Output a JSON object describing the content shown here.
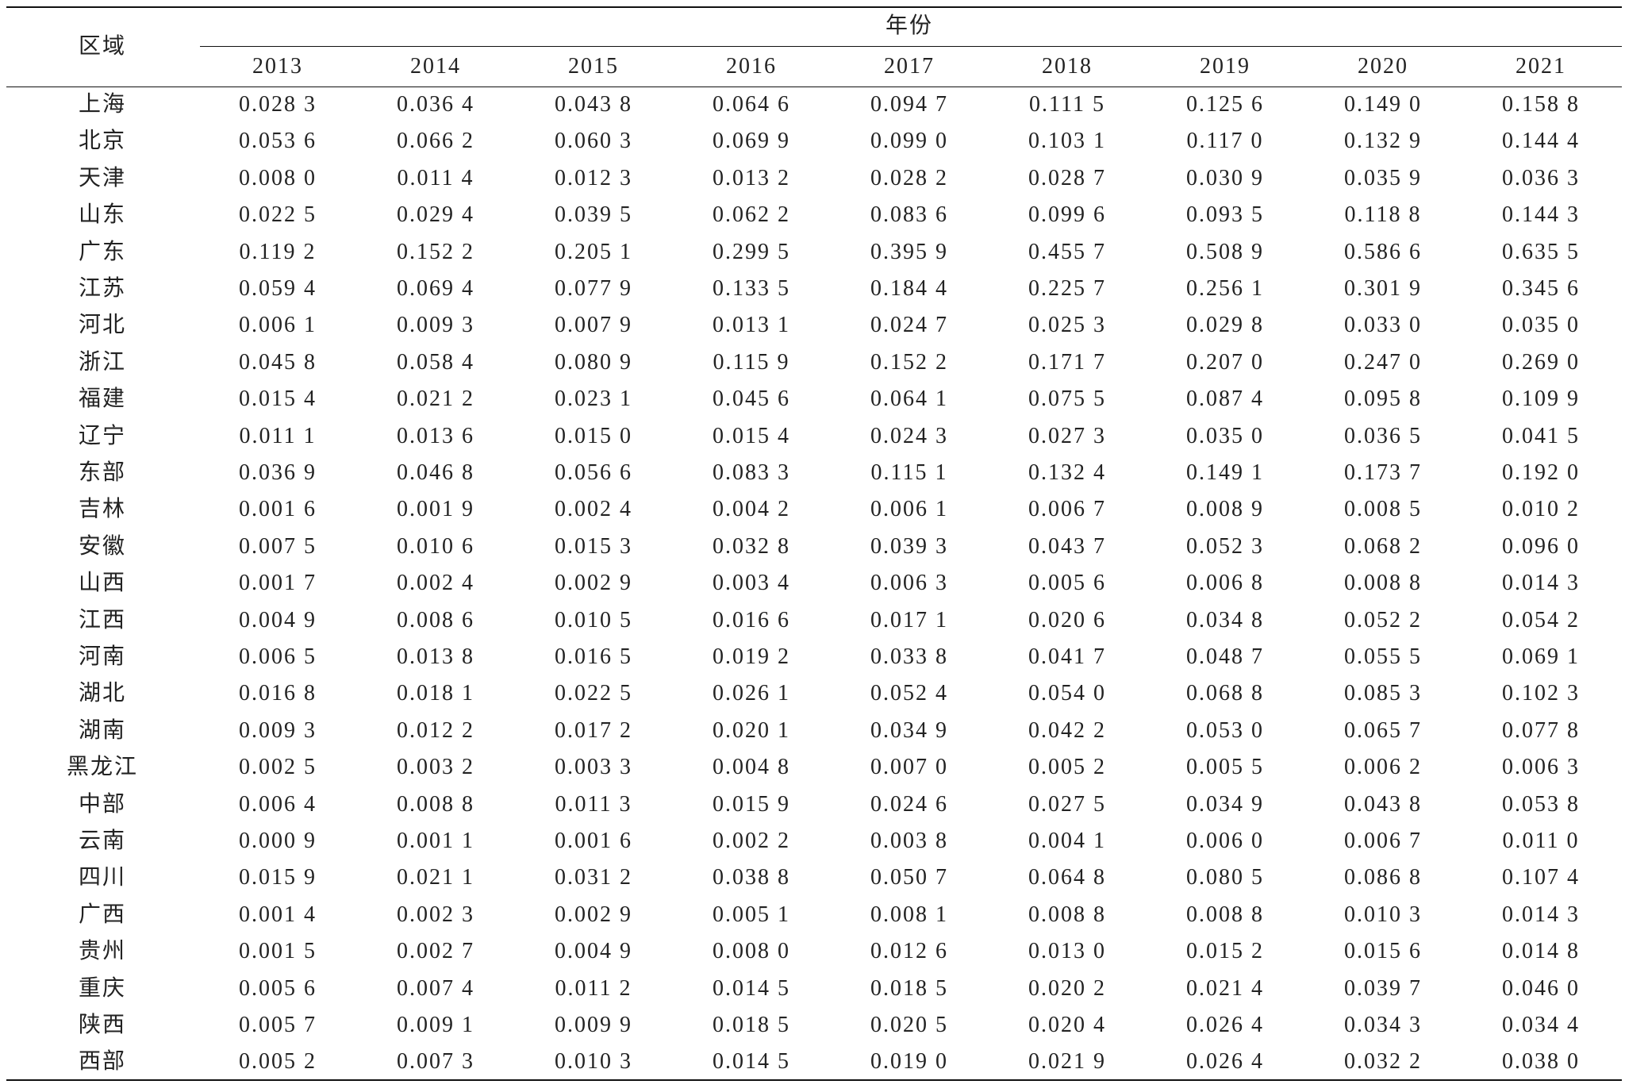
{
  "table": {
    "header": {
      "region": "区域",
      "group": "年份",
      "years": [
        "2013",
        "2014",
        "2015",
        "2016",
        "2017",
        "2018",
        "2019",
        "2020",
        "2021"
      ]
    },
    "rows": [
      {
        "region": "上海",
        "values": [
          "0.028 3",
          "0.036 4",
          "0.043 8",
          "0.064 6",
          "0.094 7",
          "0.111 5",
          "0.125 6",
          "0.149 0",
          "0.158 8"
        ]
      },
      {
        "region": "北京",
        "values": [
          "0.053 6",
          "0.066 2",
          "0.060 3",
          "0.069 9",
          "0.099 0",
          "0.103 1",
          "0.117 0",
          "0.132 9",
          "0.144 4"
        ]
      },
      {
        "region": "天津",
        "values": [
          "0.008 0",
          "0.011 4",
          "0.012 3",
          "0.013 2",
          "0.028 2",
          "0.028 7",
          "0.030 9",
          "0.035 9",
          "0.036 3"
        ]
      },
      {
        "region": "山东",
        "values": [
          "0.022 5",
          "0.029 4",
          "0.039 5",
          "0.062 2",
          "0.083 6",
          "0.099 6",
          "0.093 5",
          "0.118 8",
          "0.144 3"
        ]
      },
      {
        "region": "广东",
        "values": [
          "0.119 2",
          "0.152 2",
          "0.205 1",
          "0.299 5",
          "0.395 9",
          "0.455 7",
          "0.508 9",
          "0.586 6",
          "0.635 5"
        ]
      },
      {
        "region": "江苏",
        "values": [
          "0.059 4",
          "0.069 4",
          "0.077 9",
          "0.133 5",
          "0.184 4",
          "0.225 7",
          "0.256 1",
          "0.301 9",
          "0.345 6"
        ]
      },
      {
        "region": "河北",
        "values": [
          "0.006 1",
          "0.009 3",
          "0.007 9",
          "0.013 1",
          "0.024 7",
          "0.025 3",
          "0.029 8",
          "0.033 0",
          "0.035 0"
        ]
      },
      {
        "region": "浙江",
        "values": [
          "0.045 8",
          "0.058 4",
          "0.080 9",
          "0.115 9",
          "0.152 2",
          "0.171 7",
          "0.207 0",
          "0.247 0",
          "0.269 0"
        ]
      },
      {
        "region": "福建",
        "values": [
          "0.015 4",
          "0.021 2",
          "0.023 1",
          "0.045 6",
          "0.064 1",
          "0.075 5",
          "0.087 4",
          "0.095 8",
          "0.109 9"
        ]
      },
      {
        "region": "辽宁",
        "values": [
          "0.011 1",
          "0.013 6",
          "0.015 0",
          "0.015 4",
          "0.024 3",
          "0.027 3",
          "0.035 0",
          "0.036 5",
          "0.041 5"
        ]
      },
      {
        "region": "东部",
        "values": [
          "0.036 9",
          "0.046 8",
          "0.056 6",
          "0.083 3",
          "0.115 1",
          "0.132 4",
          "0.149 1",
          "0.173 7",
          "0.192 0"
        ]
      },
      {
        "region": "吉林",
        "values": [
          "0.001 6",
          "0.001 9",
          "0.002 4",
          "0.004 2",
          "0.006 1",
          "0.006 7",
          "0.008 9",
          "0.008 5",
          "0.010 2"
        ]
      },
      {
        "region": "安徽",
        "values": [
          "0.007 5",
          "0.010 6",
          "0.015 3",
          "0.032 8",
          "0.039 3",
          "0.043 7",
          "0.052 3",
          "0.068 2",
          "0.096 0"
        ]
      },
      {
        "region": "山西",
        "values": [
          "0.001 7",
          "0.002 4",
          "0.002 9",
          "0.003 4",
          "0.006 3",
          "0.005 6",
          "0.006 8",
          "0.008 8",
          "0.014 3"
        ]
      },
      {
        "region": "江西",
        "values": [
          "0.004 9",
          "0.008 6",
          "0.010 5",
          "0.016 6",
          "0.017 1",
          "0.020 6",
          "0.034 8",
          "0.052 2",
          "0.054 2"
        ]
      },
      {
        "region": "河南",
        "values": [
          "0.006 5",
          "0.013 8",
          "0.016 5",
          "0.019 2",
          "0.033 8",
          "0.041 7",
          "0.048 7",
          "0.055 5",
          "0.069 1"
        ]
      },
      {
        "region": "湖北",
        "values": [
          "0.016 8",
          "0.018 1",
          "0.022 5",
          "0.026 1",
          "0.052 4",
          "0.054 0",
          "0.068 8",
          "0.085 3",
          "0.102 3"
        ]
      },
      {
        "region": "湖南",
        "values": [
          "0.009 3",
          "0.012 2",
          "0.017 2",
          "0.020 1",
          "0.034 9",
          "0.042 2",
          "0.053 0",
          "0.065 7",
          "0.077 8"
        ]
      },
      {
        "region": "黑龙江",
        "values": [
          "0.002 5",
          "0.003 2",
          "0.003 3",
          "0.004 8",
          "0.007 0",
          "0.005 2",
          "0.005 5",
          "0.006 2",
          "0.006 3"
        ]
      },
      {
        "region": "中部",
        "values": [
          "0.006 4",
          "0.008 8",
          "0.011 3",
          "0.015 9",
          "0.024 6",
          "0.027 5",
          "0.034 9",
          "0.043 8",
          "0.053 8"
        ]
      },
      {
        "region": "云南",
        "values": [
          "0.000 9",
          "0.001 1",
          "0.001 6",
          "0.002 2",
          "0.003 8",
          "0.004 1",
          "0.006 0",
          "0.006 7",
          "0.011 0"
        ]
      },
      {
        "region": "四川",
        "values": [
          "0.015 9",
          "0.021 1",
          "0.031 2",
          "0.038 8",
          "0.050 7",
          "0.064 8",
          "0.080 5",
          "0.086 8",
          "0.107 4"
        ]
      },
      {
        "region": "广西",
        "values": [
          "0.001 4",
          "0.002 3",
          "0.002 9",
          "0.005 1",
          "0.008 1",
          "0.008 8",
          "0.008 8",
          "0.010 3",
          "0.014 3"
        ]
      },
      {
        "region": "贵州",
        "values": [
          "0.001 5",
          "0.002 7",
          "0.004 9",
          "0.008 0",
          "0.012 6",
          "0.013 0",
          "0.015 2",
          "0.015 6",
          "0.014 8"
        ]
      },
      {
        "region": "重庆",
        "values": [
          "0.005 6",
          "0.007 4",
          "0.011 2",
          "0.014 5",
          "0.018 5",
          "0.020 2",
          "0.021 4",
          "0.039 7",
          "0.046 0"
        ]
      },
      {
        "region": "陕西",
        "values": [
          "0.005 7",
          "0.009 1",
          "0.009 9",
          "0.018 5",
          "0.020 5",
          "0.020 4",
          "0.026 4",
          "0.034 3",
          "0.034 4"
        ]
      },
      {
        "region": "西部",
        "values": [
          "0.005 2",
          "0.007 3",
          "0.010 3",
          "0.014 5",
          "0.019 0",
          "0.021 9",
          "0.026 4",
          "0.032 2",
          "0.038 0"
        ]
      }
    ]
  }
}
